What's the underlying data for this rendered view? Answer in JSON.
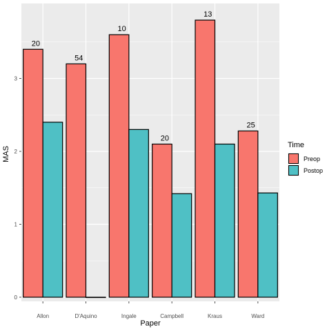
{
  "chart_data": {
    "type": "bar",
    "categories": [
      "Allon",
      "D'Aquino",
      "Ingale",
      "Campbell",
      "Kraus",
      "Ward"
    ],
    "series": [
      {
        "name": "Preop",
        "values": [
          3.4,
          3.2,
          3.6,
          2.1,
          3.8,
          2.28
        ],
        "color": "#f8766d"
      },
      {
        "name": "Postop",
        "values": [
          2.4,
          0,
          2.3,
          1.42,
          2.1,
          1.43
        ],
        "color": "#4fc0c5"
      }
    ],
    "bar_labels": [
      "20",
      "54",
      "10",
      "20",
      "13",
      "25"
    ],
    "xlabel": "Paper",
    "ylabel": "MAS",
    "ylim": [
      0,
      4
    ],
    "yticks": [
      "0",
      "1",
      "2",
      "3"
    ],
    "legend_title": "Time",
    "legend_position": "right",
    "grid": true,
    "panel_background": "#ebebeb",
    "grid_color": "#ffffff"
  }
}
